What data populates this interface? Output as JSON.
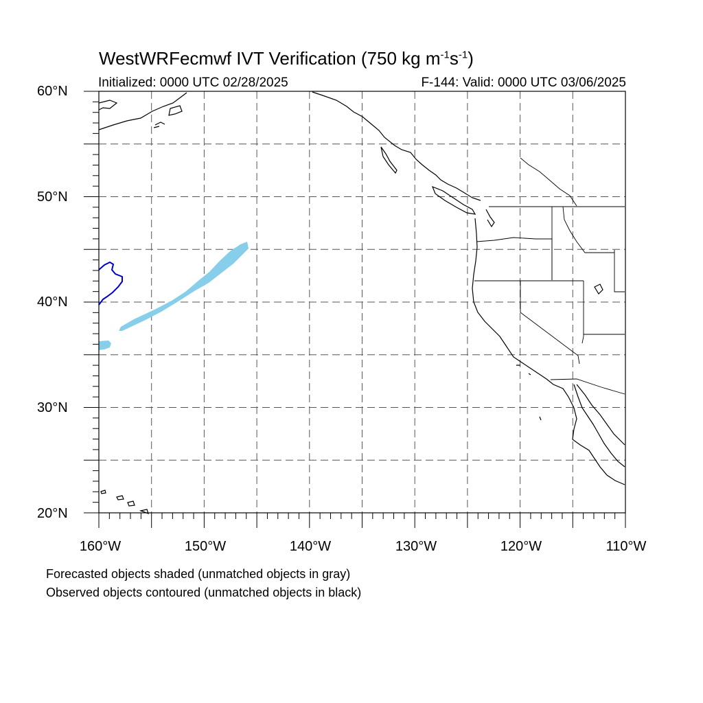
{
  "title": {
    "main": "WestWRFecmwf IVT Verification (750 kg m",
    "exp1": "-1",
    "mid": "s",
    "exp2": "-1",
    "close": ")"
  },
  "initialized": "Initialized: 0000 UTC 02/28/2025",
  "valid": "F-144: Valid: 0000 UTC 03/06/2025",
  "lat_labels": [
    "60°N",
    "50°N",
    "40°N",
    "30°N",
    "20°N"
  ],
  "lon_labels": [
    "160°W",
    "150°W",
    "140°W",
    "130°W",
    "120°W",
    "110°W"
  ],
  "map": {
    "lon_range": [
      -160,
      -110
    ],
    "lat_range": [
      20,
      60
    ],
    "grid_step_deg": 5
  },
  "legend": {
    "forecast": "Forecasted objects shaded (unmatched objects in gray)",
    "observed": "Observed objects contoured (unmatched objects in black)"
  },
  "colors": {
    "forecast_fill": "#87ceeb",
    "observed_contour": "#0000cd",
    "coastline": "#000000",
    "grid": "#555555"
  }
}
